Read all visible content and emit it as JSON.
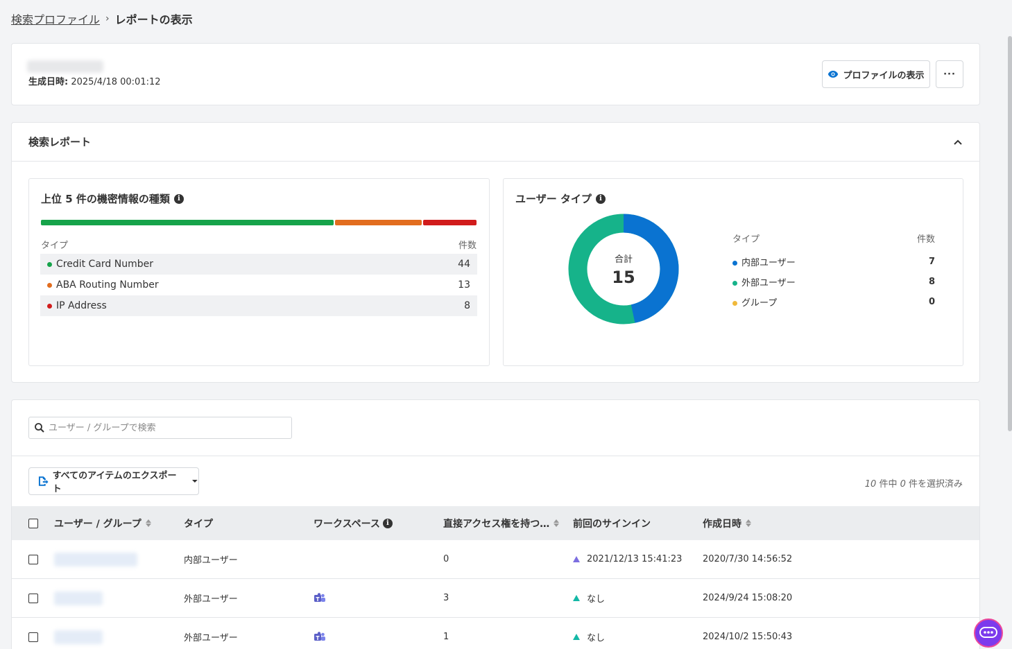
{
  "breadcrumb": {
    "parent": "検索プロファイル",
    "separator": "›",
    "current": "レポートの表示"
  },
  "header": {
    "generated_label": "生成日時:",
    "generated_value": "2025/4/18 00:01:12",
    "view_profile_label": "プロファイルの表示",
    "more_label": "···"
  },
  "report": {
    "title": "検索レポート",
    "sensitive": {
      "title": "上位 5 件の機密情報の種類",
      "col_type": "タイプ",
      "col_count": "件数",
      "rows": [
        {
          "name": "Credit Card Number",
          "count": "44",
          "color": "#16a34a"
        },
        {
          "name": "ABA Routing Number",
          "count": "13",
          "color": "#e26d1f"
        },
        {
          "name": "IP Address",
          "count": "8",
          "color": "#d11c1c"
        }
      ]
    },
    "user_type": {
      "title": "ユーザー タイプ",
      "total_label": "合計",
      "total": "15",
      "col_type": "タイプ",
      "col_count": "件数",
      "rows": [
        {
          "name": "内部ユーザー",
          "count": "7",
          "color": "#0a73d1"
        },
        {
          "name": "外部ユーザー",
          "count": "8",
          "color": "#16b38a"
        },
        {
          "name": "グループ",
          "count": "0",
          "color": "#f0b93b"
        }
      ]
    }
  },
  "list": {
    "search_placeholder": "ユーザー / グループで検索",
    "export_label": "すべてのアイテムのエクスポート",
    "selected": {
      "total": "10",
      "mid": " 件中 ",
      "selected": "0",
      "suffix": " 件を選択済み"
    },
    "columns": {
      "user": "ユーザー / グループ",
      "type": "タイプ",
      "workspace": "ワークスペース",
      "direct_access": "直接アクセス権を持つ…",
      "last_signin": "前回のサインイン",
      "created": "作成日時"
    },
    "rows": [
      {
        "type": "内部ユーザー",
        "direct": "0",
        "signin": "2021/12/13 15:41:23",
        "created": "2020/7/30 14:56:52"
      },
      {
        "type": "外部ユーザー",
        "direct": "3",
        "signin": "なし",
        "created": "2024/9/24 15:08:20"
      },
      {
        "type": "外部ユーザー",
        "direct": "1",
        "signin": "なし",
        "created": "2024/10/2 15:50:43"
      }
    ]
  }
}
